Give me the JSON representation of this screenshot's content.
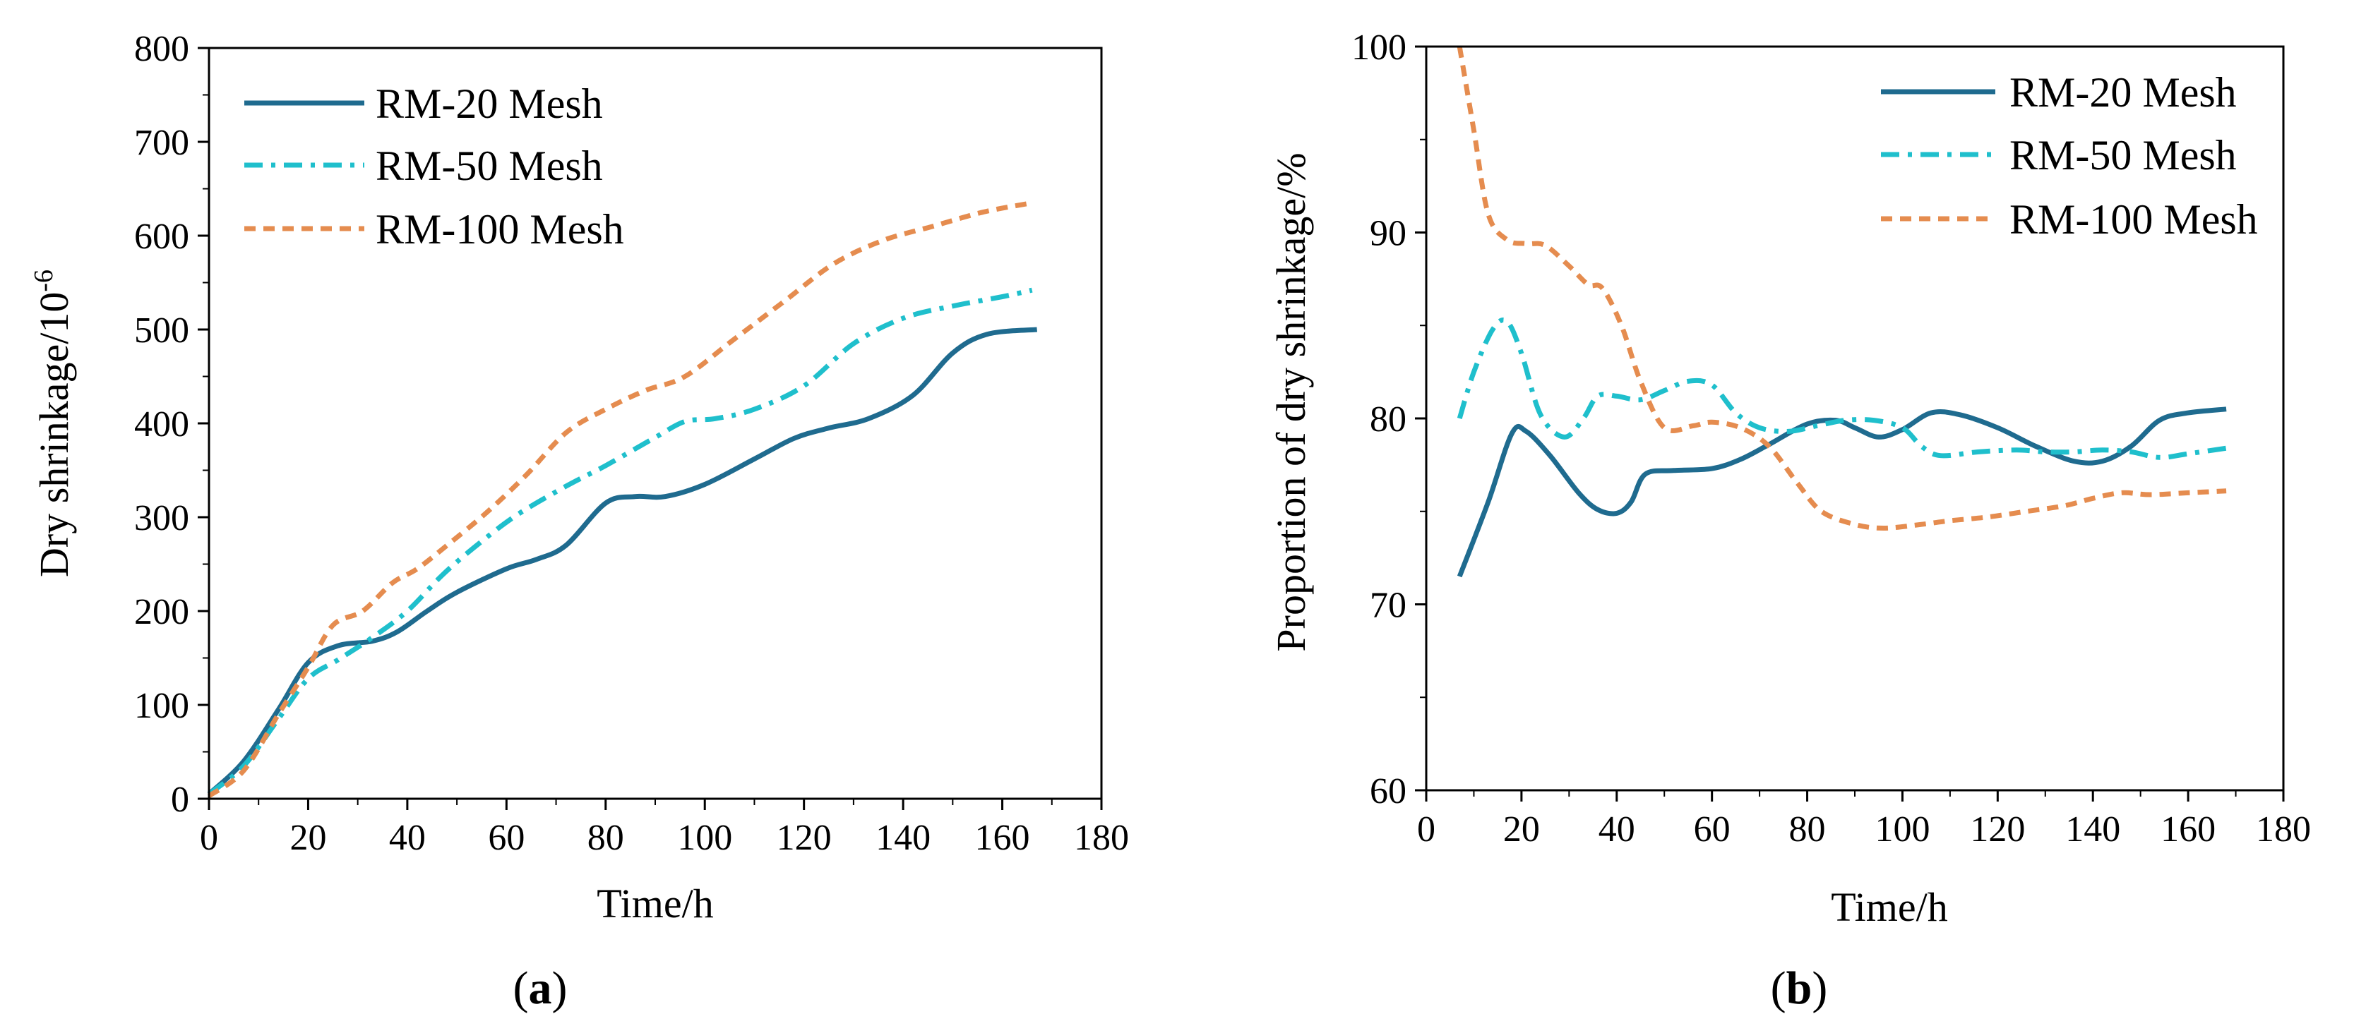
{
  "colors": {
    "RM-20 Mesh": "#1f6b8f",
    "RM-50 Mesh": "#1fbfcc",
    "RM-100 Mesh": "#e58c4f"
  },
  "chart_data": [
    {
      "type": "line",
      "panel_label": "a",
      "xlabel": "Time/h",
      "ylabel": "Dry shrinkage/10",
      "ylabel_exponent": "-6",
      "xlim": [
        0,
        180
      ],
      "ylim": [
        0,
        800
      ],
      "x_ticks": [
        0,
        20,
        40,
        60,
        80,
        100,
        120,
        140,
        160,
        180
      ],
      "y_ticks": [
        0,
        100,
        200,
        300,
        400,
        500,
        600,
        700,
        800
      ],
      "grid": false,
      "legend": "top-left",
      "series": [
        {
          "name": "RM-20 Mesh",
          "style": "solid",
          "points": [
            [
              0,
              5
            ],
            [
              7,
              40
            ],
            [
              14,
              95
            ],
            [
              20,
              145
            ],
            [
              26,
              163
            ],
            [
              33,
              168
            ],
            [
              38,
              178
            ],
            [
              44,
              200
            ],
            [
              50,
              220
            ],
            [
              60,
              245
            ],
            [
              66,
              255
            ],
            [
              72,
              270
            ],
            [
              80,
              315
            ],
            [
              86,
              322
            ],
            [
              92,
              322
            ],
            [
              100,
              335
            ],
            [
              110,
              362
            ],
            [
              118,
              384
            ],
            [
              125,
              395
            ],
            [
              133,
              405
            ],
            [
              142,
              430
            ],
            [
              150,
              475
            ],
            [
              157,
              495
            ],
            [
              167,
              500
            ]
          ]
        },
        {
          "name": "RM-50 Mesh",
          "style": "dash-dot",
          "points": [
            [
              0,
              5
            ],
            [
              7,
              35
            ],
            [
              14,
              85
            ],
            [
              20,
              128
            ],
            [
              26,
              148
            ],
            [
              33,
              172
            ],
            [
              40,
              200
            ],
            [
              47,
              238
            ],
            [
              54,
              270
            ],
            [
              62,
              302
            ],
            [
              72,
              333
            ],
            [
              80,
              355
            ],
            [
              90,
              385
            ],
            [
              96,
              402
            ],
            [
              102,
              405
            ],
            [
              110,
              415
            ],
            [
              120,
              440
            ],
            [
              130,
              485
            ],
            [
              140,
              512
            ],
            [
              150,
              525
            ],
            [
              160,
              535
            ],
            [
              166,
              542
            ]
          ]
        },
        {
          "name": "RM-100 Mesh",
          "style": "dashed",
          "points": [
            [
              0,
              3
            ],
            [
              7,
              30
            ],
            [
              14,
              90
            ],
            [
              20,
              140
            ],
            [
              25,
              185
            ],
            [
              31,
              200
            ],
            [
              37,
              230
            ],
            [
              42,
              245
            ],
            [
              48,
              270
            ],
            [
              56,
              305
            ],
            [
              64,
              345
            ],
            [
              72,
              390
            ],
            [
              80,
              415
            ],
            [
              88,
              435
            ],
            [
              96,
              450
            ],
            [
              106,
              490
            ],
            [
              116,
              530
            ],
            [
              126,
              570
            ],
            [
              136,
              595
            ],
            [
              146,
              610
            ],
            [
              156,
              625
            ],
            [
              166,
              635
            ]
          ]
        }
      ]
    },
    {
      "type": "line",
      "panel_label": "b",
      "xlabel": "Time/h",
      "ylabel": "Proportion of dry shrinkage/%",
      "xlim": [
        0,
        180
      ],
      "ylim": [
        60,
        100
      ],
      "x_ticks": [
        0,
        20,
        40,
        60,
        80,
        100,
        120,
        140,
        160,
        180
      ],
      "y_ticks": [
        60,
        70,
        80,
        90,
        100
      ],
      "grid": false,
      "legend": "top-right",
      "series": [
        {
          "name": "RM-20 Mesh",
          "style": "solid",
          "points": [
            [
              7,
              71.5
            ],
            [
              13,
              75.5
            ],
            [
              18,
              79.2
            ],
            [
              21,
              79.3
            ],
            [
              26,
              78.0
            ],
            [
              32,
              76.0
            ],
            [
              36,
              75.1
            ],
            [
              40,
              74.9
            ],
            [
              43,
              75.5
            ],
            [
              46,
              77.0
            ],
            [
              52,
              77.2
            ],
            [
              60,
              77.3
            ],
            [
              66,
              77.8
            ],
            [
              72,
              78.6
            ],
            [
              80,
              79.7
            ],
            [
              86,
              79.9
            ],
            [
              90,
              79.5
            ],
            [
              95,
              79.0
            ],
            [
              100,
              79.4
            ],
            [
              106,
              80.3
            ],
            [
              112,
              80.2
            ],
            [
              120,
              79.5
            ],
            [
              128,
              78.5
            ],
            [
              136,
              77.7
            ],
            [
              142,
              77.7
            ],
            [
              148,
              78.5
            ],
            [
              154,
              79.9
            ],
            [
              160,
              80.3
            ],
            [
              168,
              80.5
            ]
          ]
        },
        {
          "name": "RM-50 Mesh",
          "style": "dash-dot",
          "points": [
            [
              7,
              80.0
            ],
            [
              10,
              82.5
            ],
            [
              14,
              84.8
            ],
            [
              17,
              85.2
            ],
            [
              20,
              83.5
            ],
            [
              24,
              80.2
            ],
            [
              29,
              79.0
            ],
            [
              33,
              80.0
            ],
            [
              36,
              81.2
            ],
            [
              40,
              81.2
            ],
            [
              45,
              81.0
            ],
            [
              50,
              81.5
            ],
            [
              55,
              82.0
            ],
            [
              60,
              81.8
            ],
            [
              65,
              80.3
            ],
            [
              70,
              79.5
            ],
            [
              76,
              79.3
            ],
            [
              82,
              79.6
            ],
            [
              88,
              79.9
            ],
            [
              94,
              79.9
            ],
            [
              100,
              79.5
            ],
            [
              104,
              78.5
            ],
            [
              108,
              78.0
            ],
            [
              116,
              78.2
            ],
            [
              124,
              78.3
            ],
            [
              130,
              78.2
            ],
            [
              136,
              78.2
            ],
            [
              142,
              78.3
            ],
            [
              148,
              78.2
            ],
            [
              154,
              77.9
            ],
            [
              160,
              78.1
            ],
            [
              168,
              78.4
            ]
          ]
        },
        {
          "name": "RM-100 Mesh",
          "style": "dashed",
          "points": [
            [
              7,
              100.0
            ],
            [
              10,
              95.5
            ],
            [
              13,
              91.0
            ],
            [
              17,
              89.6
            ],
            [
              21,
              89.4
            ],
            [
              25,
              89.3
            ],
            [
              30,
              88.2
            ],
            [
              34,
              87.2
            ],
            [
              37,
              87.0
            ],
            [
              41,
              85.0
            ],
            [
              45,
              82.0
            ],
            [
              50,
              79.5
            ],
            [
              56,
              79.6
            ],
            [
              60,
              79.8
            ],
            [
              66,
              79.5
            ],
            [
              72,
              78.5
            ],
            [
              78,
              76.5
            ],
            [
              83,
              75.0
            ],
            [
              90,
              74.3
            ],
            [
              96,
              74.1
            ],
            [
              104,
              74.3
            ],
            [
              110,
              74.5
            ],
            [
              118,
              74.7
            ],
            [
              126,
              75.0
            ],
            [
              134,
              75.3
            ],
            [
              140,
              75.7
            ],
            [
              146,
              76.0
            ],
            [
              152,
              75.9
            ],
            [
              160,
              76.0
            ],
            [
              168,
              76.1
            ]
          ]
        }
      ]
    }
  ]
}
